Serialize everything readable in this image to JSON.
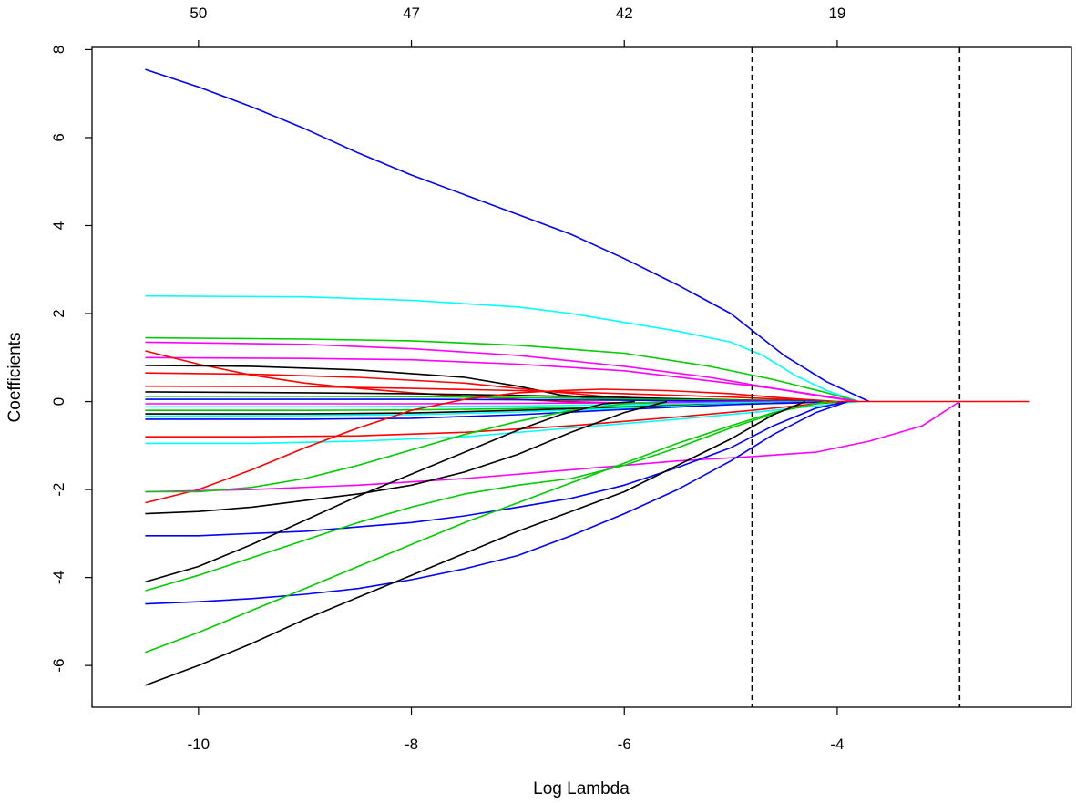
{
  "chart_data": {
    "type": "line",
    "title": "",
    "xlabel": "Log Lambda",
    "ylabel": "Coefficients",
    "xlim": [
      -11.0,
      -1.8
    ],
    "ylim": [
      -6.95,
      8.05
    ],
    "x_ticks": [
      -10,
      -8,
      -6,
      -4
    ],
    "y_ticks": [
      -6,
      -4,
      -2,
      0,
      2,
      4,
      6,
      8
    ],
    "x_tick_labels": [
      "-10",
      "-8",
      "-6",
      "-4"
    ],
    "y_tick_labels": [
      "-6",
      "-4",
      "-2",
      "0",
      "2",
      "4",
      "6",
      "8"
    ],
    "top_axis": {
      "positions": [
        -10,
        -8,
        -6,
        -4
      ],
      "labels": [
        "50",
        "47",
        "42",
        "19"
      ]
    },
    "vlines": [
      -4.8,
      -2.85
    ],
    "grid": false,
    "legend": "none",
    "colors": [
      "#0000ff",
      "#00ffff",
      "#00cc00",
      "#ff00ff",
      "#ff0000",
      "#000000"
    ],
    "series": [
      {
        "color": "#0000ff",
        "x": [
          -10.5,
          -10,
          -9.5,
          -9,
          -8.5,
          -8,
          -7.5,
          -7,
          -6.5,
          -6,
          -5.5,
          -5,
          -4.5,
          -4.1,
          -3.7
        ],
        "y": [
          7.55,
          7.15,
          6.7,
          6.2,
          5.65,
          5.15,
          4.7,
          4.25,
          3.8,
          3.25,
          2.65,
          2.0,
          1.05,
          0.45,
          0.0
        ]
      },
      {
        "color": "#00ffff",
        "x": [
          -10.5,
          -9,
          -8,
          -7,
          -6.5,
          -6,
          -5.5,
          -5,
          -4.7,
          -4.4,
          -4.1,
          -3.8
        ],
        "y": [
          2.4,
          2.38,
          2.3,
          2.15,
          2.0,
          1.8,
          1.6,
          1.35,
          1.05,
          0.6,
          0.25,
          0.0
        ]
      },
      {
        "color": "#00cc00",
        "x": [
          -10.5,
          -9,
          -8,
          -7,
          -6,
          -5.2,
          -4.6,
          -4.1,
          -3.8
        ],
        "y": [
          1.45,
          1.42,
          1.38,
          1.28,
          1.1,
          0.8,
          0.5,
          0.2,
          0.0
        ]
      },
      {
        "color": "#ff00ff",
        "x": [
          -10.5,
          -9,
          -8,
          -7,
          -6,
          -5.2,
          -4.6,
          -4.1,
          -3.8
        ],
        "y": [
          1.35,
          1.3,
          1.2,
          1.05,
          0.8,
          0.55,
          0.3,
          0.1,
          0.0
        ]
      },
      {
        "color": "#ff00ff",
        "x": [
          -10.5,
          -9,
          -8,
          -7,
          -6,
          -5.3,
          -4.6,
          -4.0,
          -3.8
        ],
        "y": [
          1.0,
          0.98,
          0.95,
          0.85,
          0.7,
          0.5,
          0.3,
          0.08,
          0.0
        ]
      },
      {
        "color": "#ff0000",
        "x": [
          -10.5,
          -10,
          -9.5,
          -9,
          -8.5,
          -8,
          -7.5,
          -7,
          -6.6,
          -6.2,
          -5.6,
          -5,
          -4.5,
          -3.9
        ],
        "y": [
          1.15,
          0.85,
          0.6,
          0.42,
          0.3,
          0.2,
          0.12,
          0.05,
          0.0,
          -0.02,
          -0.05,
          -0.05,
          -0.04,
          0.0
        ]
      },
      {
        "color": "#000000",
        "x": [
          -10.5,
          -9.5,
          -8.5,
          -7.5,
          -7.0,
          -6.6,
          -6.2,
          -5.6,
          -5.0,
          -4.5,
          -4.0
        ],
        "y": [
          0.82,
          0.8,
          0.72,
          0.55,
          0.35,
          0.15,
          0.06,
          0.02,
          0.0,
          0.0,
          0.0
        ]
      },
      {
        "color": "#ff0000",
        "x": [
          -10.5,
          -9.5,
          -8.5,
          -7.5,
          -6.8,
          -6.2,
          -5.6,
          -5.0,
          -4.4,
          -3.9
        ],
        "y": [
          0.65,
          0.62,
          0.55,
          0.42,
          0.25,
          0.12,
          0.05,
          0.02,
          0.0,
          0.0
        ]
      },
      {
        "color": "#ff0000",
        "x": [
          -10.5,
          -9,
          -8,
          -7,
          -6,
          -5,
          -4.5,
          -4.0
        ],
        "y": [
          0.35,
          0.34,
          0.3,
          0.25,
          0.18,
          0.1,
          0.05,
          0.0
        ]
      },
      {
        "color": "#000000",
        "x": [
          -10.5,
          -9,
          -8,
          -7,
          -6,
          -5,
          -4.0
        ],
        "y": [
          0.22,
          0.2,
          0.18,
          0.14,
          0.09,
          0.04,
          0.0
        ]
      },
      {
        "color": "#00cc00",
        "x": [
          -10.5,
          -9,
          -8,
          -7,
          -6,
          -5,
          -4.0
        ],
        "y": [
          0.12,
          0.12,
          0.11,
          0.09,
          0.06,
          0.03,
          0.0
        ]
      },
      {
        "color": "#0000ff",
        "x": [
          -10.5,
          -9,
          -8,
          -7,
          -6,
          -5,
          -4.0
        ],
        "y": [
          0.05,
          0.05,
          0.05,
          0.04,
          0.03,
          0.01,
          0.0
        ]
      },
      {
        "color": "#ff00ff",
        "x": [
          -10.5,
          -9,
          -8,
          -7,
          -6,
          -5,
          -4.0
        ],
        "y": [
          -0.05,
          -0.05,
          -0.05,
          -0.04,
          -0.03,
          -0.01,
          0.0
        ]
      },
      {
        "color": "#00ffff",
        "x": [
          -10.5,
          -9,
          -8,
          -7,
          -6,
          -5,
          -4.0
        ],
        "y": [
          -0.12,
          -0.12,
          -0.11,
          -0.1,
          -0.07,
          -0.03,
          0.0
        ]
      },
      {
        "color": "#00cc00",
        "x": [
          -10.5,
          -9,
          -8,
          -7,
          -6,
          -5,
          -4.0
        ],
        "y": [
          -0.2,
          -0.2,
          -0.19,
          -0.16,
          -0.11,
          -0.05,
          0.0
        ]
      },
      {
        "color": "#000000",
        "x": [
          -10.5,
          -9,
          -8,
          -7,
          -6,
          -5,
          -4.0
        ],
        "y": [
          -0.28,
          -0.28,
          -0.26,
          -0.2,
          -0.13,
          -0.06,
          0.0
        ]
      },
      {
        "color": "#00ffff",
        "x": [
          -10.5,
          -9,
          -8,
          -7,
          -6,
          -5,
          -4.0
        ],
        "y": [
          -0.33,
          -0.32,
          -0.3,
          -0.24,
          -0.15,
          -0.06,
          0.0
        ]
      },
      {
        "color": "#0000ff",
        "x": [
          -10.5,
          -9,
          -8,
          -7,
          -6,
          -5,
          -4.0
        ],
        "y": [
          -0.4,
          -0.4,
          -0.38,
          -0.3,
          -0.18,
          -0.07,
          0.0
        ]
      },
      {
        "color": "#00ffff",
        "x": [
          -10.5,
          -9.5,
          -8.5,
          -7.5,
          -6.5,
          -5.5,
          -4.8,
          -4.2,
          -3.8
        ],
        "y": [
          -0.95,
          -0.95,
          -0.9,
          -0.8,
          -0.6,
          -0.4,
          -0.25,
          -0.1,
          0.0
        ]
      },
      {
        "color": "#ff0000",
        "x": [
          -10.5,
          -9.5,
          -8.5,
          -7.5,
          -6.5,
          -5.5,
          -4.8,
          -4.2,
          -3.9
        ],
        "y": [
          -0.8,
          -0.8,
          -0.78,
          -0.7,
          -0.55,
          -0.35,
          -0.2,
          -0.05,
          0.0
        ]
      },
      {
        "color": "#ff0000",
        "x": [
          -10.5,
          -10,
          -9.5,
          -9,
          -8.5,
          -8,
          -7.5,
          -7,
          -6.6,
          -6.2,
          -5.6,
          -5.0,
          -4.5,
          -4.0
        ],
        "y": [
          -2.3,
          -2.0,
          -1.55,
          -1.05,
          -0.6,
          -0.2,
          0.05,
          0.2,
          0.25,
          0.28,
          0.25,
          0.18,
          0.08,
          0.0
        ]
      },
      {
        "color": "#ff00ff",
        "x": [
          -10.5,
          -9.5,
          -8.5,
          -7.5,
          -6.5,
          -5.5,
          -4.8,
          -4.2,
          -3.7,
          -3.2,
          -2.85
        ],
        "y": [
          -2.05,
          -2.0,
          -1.9,
          -1.75,
          -1.55,
          -1.35,
          -1.25,
          -1.15,
          -0.9,
          -0.55,
          0.0
        ]
      },
      {
        "color": "#00cc00",
        "x": [
          -10.5,
          -10,
          -9.5,
          -9,
          -8.5,
          -8,
          -7.5,
          -7,
          -6.5,
          -6,
          -5.6
        ],
        "y": [
          -2.05,
          -2.05,
          -1.95,
          -1.75,
          -1.45,
          -1.1,
          -0.75,
          -0.45,
          -0.2,
          -0.05,
          0.0
        ]
      },
      {
        "color": "#000000",
        "x": [
          -10.5,
          -10,
          -9.5,
          -9,
          -8.5,
          -8,
          -7.5,
          -7,
          -6.5,
          -6,
          -5.6
        ],
        "y": [
          -2.55,
          -2.5,
          -2.4,
          -2.25,
          -2.1,
          -1.9,
          -1.6,
          -1.2,
          -0.7,
          -0.25,
          0.0
        ]
      },
      {
        "color": "#0000ff",
        "x": [
          -10.5,
          -10,
          -9.5,
          -9,
          -8.5,
          -8,
          -7.5,
          -7,
          -6.5,
          -6,
          -5.5,
          -5,
          -4.6,
          -4.2,
          -3.9
        ],
        "y": [
          -3.05,
          -3.05,
          -3.0,
          -2.95,
          -2.85,
          -2.75,
          -2.6,
          -2.4,
          -2.2,
          -1.9,
          -1.5,
          -1.05,
          -0.55,
          -0.15,
          0.0
        ]
      },
      {
        "color": "#000000",
        "x": [
          -10.5,
          -10,
          -9.5,
          -9,
          -8.5,
          -8,
          -7.5,
          -7,
          -6.6,
          -6.2,
          -5.9
        ],
        "y": [
          -4.1,
          -3.75,
          -3.25,
          -2.7,
          -2.15,
          -1.65,
          -1.15,
          -0.65,
          -0.3,
          -0.05,
          0.0
        ]
      },
      {
        "color": "#00cc00",
        "x": [
          -10.5,
          -10,
          -9.5,
          -9,
          -8.5,
          -8,
          -7.5,
          -7,
          -6.5,
          -6,
          -5.5,
          -5.0,
          -4.5,
          -4.1
        ],
        "y": [
          -4.3,
          -3.95,
          -3.55,
          -3.15,
          -2.75,
          -2.4,
          -2.1,
          -1.9,
          -1.75,
          -1.45,
          -1.05,
          -0.6,
          -0.2,
          0.0
        ]
      },
      {
        "color": "#0000ff",
        "x": [
          -10.5,
          -10,
          -9.5,
          -9,
          -8.5,
          -8,
          -7.5,
          -7,
          -6.5,
          -6,
          -5.5,
          -5,
          -4.6,
          -4.2,
          -3.9
        ],
        "y": [
          -4.6,
          -4.55,
          -4.48,
          -4.38,
          -4.25,
          -4.05,
          -3.8,
          -3.5,
          -3.05,
          -2.55,
          -2.0,
          -1.35,
          -0.75,
          -0.25,
          0.0
        ]
      },
      {
        "color": "#00cc00",
        "x": [
          -10.5,
          -10,
          -9.5,
          -9,
          -8.5,
          -8,
          -7.5,
          -7,
          -6.5,
          -6,
          -5.5,
          -5,
          -4.6,
          -4.2,
          -4.0
        ],
        "y": [
          -5.7,
          -5.25,
          -4.75,
          -4.25,
          -3.75,
          -3.25,
          -2.75,
          -2.3,
          -1.85,
          -1.4,
          -0.95,
          -0.55,
          -0.25,
          -0.05,
          0.0
        ]
      },
      {
        "color": "#000000",
        "x": [
          -10.5,
          -10,
          -9.5,
          -9,
          -8.5,
          -8,
          -7.5,
          -7,
          -6.5,
          -6,
          -5.5,
          -5,
          -4.6,
          -4.3
        ],
        "y": [
          -6.45,
          -6.0,
          -5.5,
          -4.95,
          -4.45,
          -3.95,
          -3.45,
          -2.95,
          -2.5,
          -2.05,
          -1.45,
          -0.85,
          -0.3,
          0.0
        ]
      },
      {
        "color": "#ff0000",
        "x": [
          -3.95,
          -3.0,
          -2.2
        ],
        "y": [
          0.0,
          0.0,
          0.0
        ]
      }
    ]
  }
}
